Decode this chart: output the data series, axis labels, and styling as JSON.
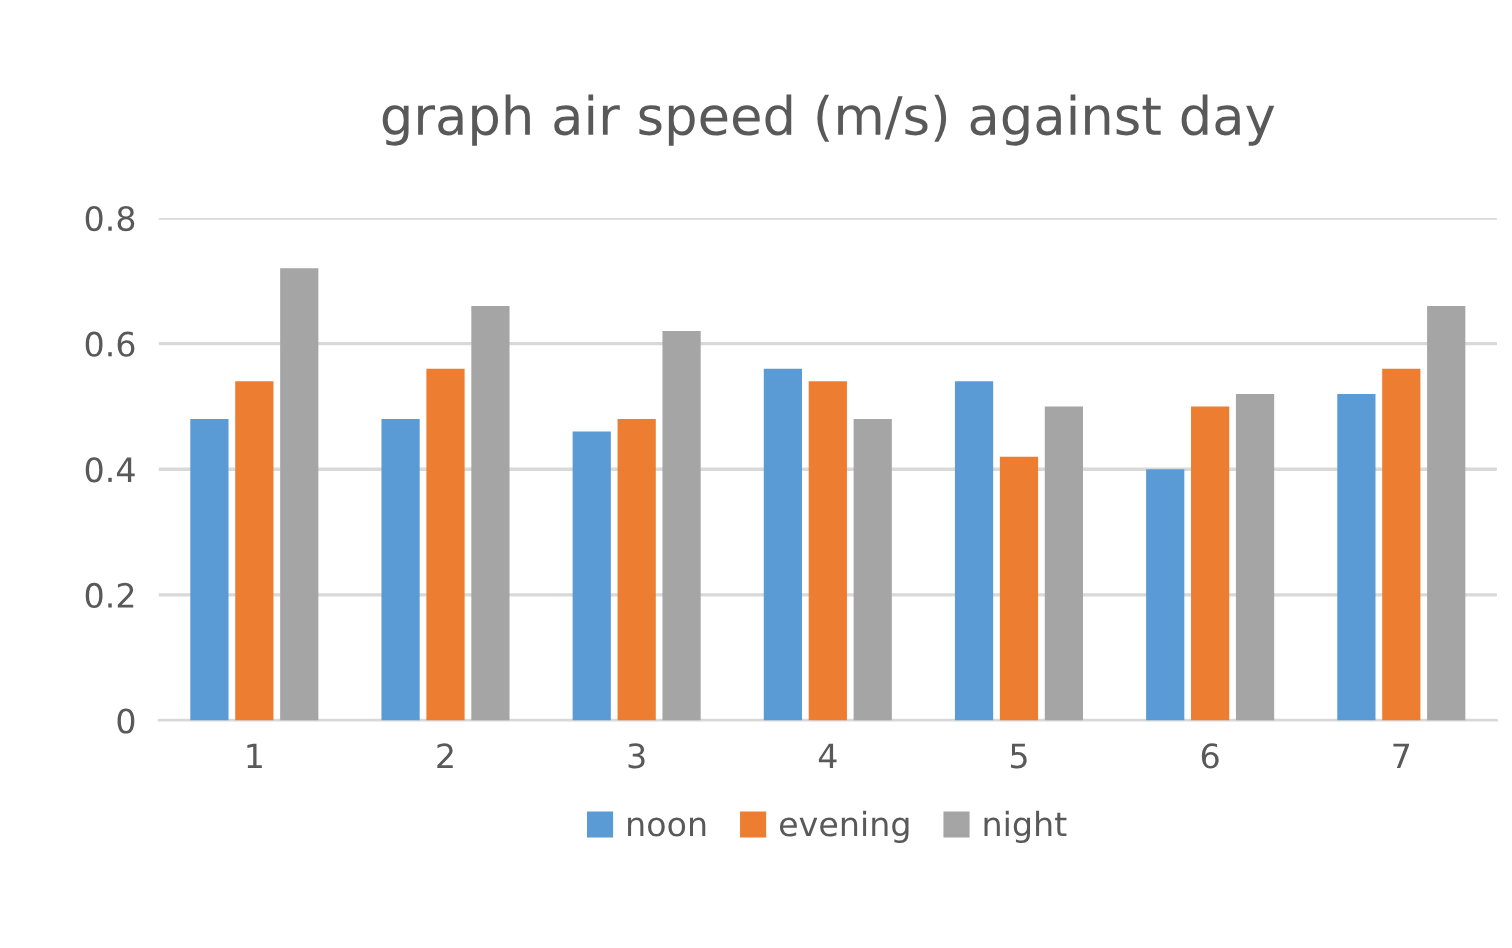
{
  "chart_data": {
    "type": "bar",
    "title": "graph air speed (m/s) against day",
    "categories": [
      "1",
      "2",
      "3",
      "4",
      "5",
      "6",
      "7"
    ],
    "series": [
      {
        "name": "noon",
        "color": "#5b9bd5",
        "values": [
          0.48,
          0.48,
          0.46,
          0.56,
          0.54,
          0.4,
          0.52
        ]
      },
      {
        "name": "evening",
        "color": "#ed7d31",
        "values": [
          0.54,
          0.56,
          0.48,
          0.54,
          0.42,
          0.5,
          0.56
        ]
      },
      {
        "name": "night",
        "color": "#a5a5a5",
        "values": [
          0.72,
          0.66,
          0.62,
          0.48,
          0.5,
          0.52,
          0.66
        ]
      }
    ],
    "ylim": [
      0,
      0.8
    ],
    "yticks": [
      {
        "value": 0,
        "label": "0"
      },
      0.2,
      0.4,
      0.6,
      0.8
    ],
    "grid": "y",
    "legend": "bottom"
  }
}
